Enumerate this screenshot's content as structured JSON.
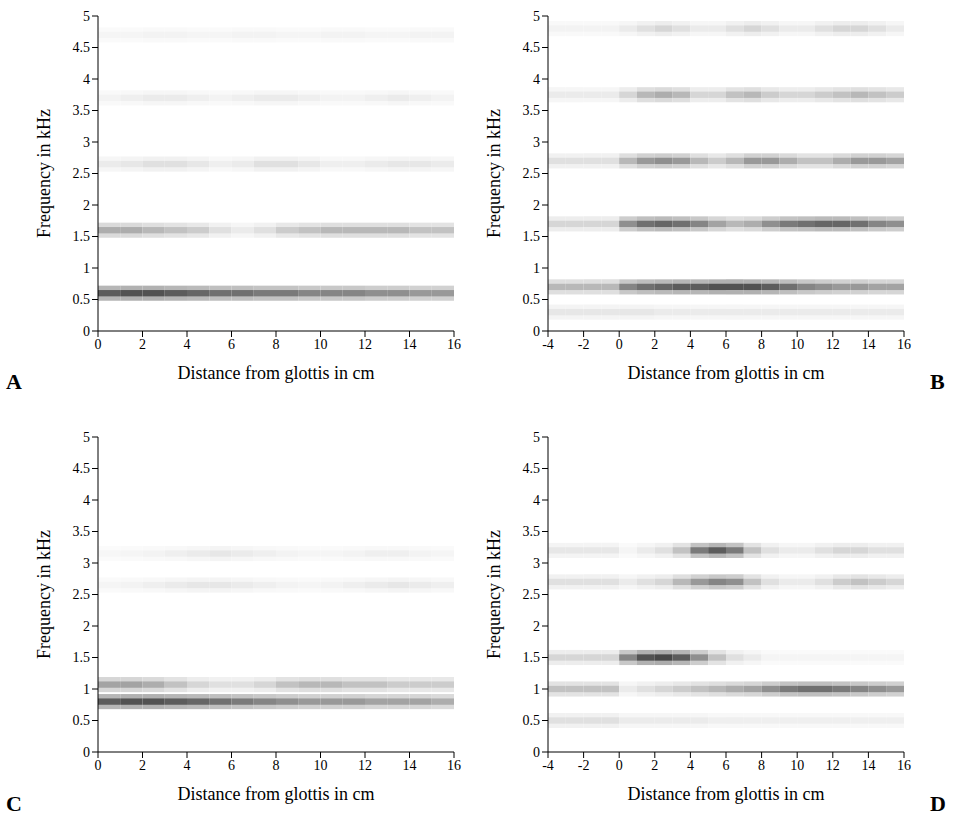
{
  "chart_data": [
    {
      "type": "heatmap",
      "label": "A",
      "xlabel": "Distance from glottis in cm",
      "ylabel": "Frequency in kHz",
      "xlim": [
        0,
        16
      ],
      "xticks": [
        0,
        2,
        4,
        6,
        8,
        10,
        12,
        14,
        16
      ],
      "ylim": [
        0,
        5
      ],
      "yticks": [
        0,
        0.5,
        1,
        1.5,
        2,
        2.5,
        3,
        3.5,
        4,
        4.5,
        5
      ],
      "zlim": [
        0,
        1
      ],
      "xbins": [
        0,
        1,
        2,
        3,
        4,
        5,
        6,
        7,
        8,
        9,
        10,
        11,
        12,
        13,
        14,
        15,
        16
      ],
      "bands": [
        {
          "freq": 0.6,
          "values": [
            0.8,
            0.85,
            0.85,
            0.8,
            0.75,
            0.7,
            0.7,
            0.65,
            0.65,
            0.6,
            0.6,
            0.6,
            0.55,
            0.55,
            0.5,
            0.5
          ]
        },
        {
          "freq": 1.6,
          "values": [
            0.4,
            0.4,
            0.35,
            0.3,
            0.25,
            0.15,
            0.1,
            0.15,
            0.25,
            0.3,
            0.35,
            0.35,
            0.35,
            0.35,
            0.3,
            0.3
          ]
        },
        {
          "freq": 2.65,
          "values": [
            0.1,
            0.12,
            0.15,
            0.15,
            0.12,
            0.08,
            0.1,
            0.15,
            0.15,
            0.12,
            0.08,
            0.08,
            0.1,
            0.12,
            0.12,
            0.1
          ]
        },
        {
          "freq": 3.7,
          "values": [
            0.06,
            0.08,
            0.1,
            0.1,
            0.08,
            0.06,
            0.08,
            0.1,
            0.1,
            0.08,
            0.06,
            0.06,
            0.08,
            0.1,
            0.08,
            0.06
          ]
        },
        {
          "freq": 4.7,
          "values": [
            0.05,
            0.05,
            0.06,
            0.06,
            0.05,
            0.05,
            0.06,
            0.06,
            0.05,
            0.05,
            0.06,
            0.06,
            0.05,
            0.05,
            0.06,
            0.06
          ]
        }
      ]
    },
    {
      "type": "heatmap",
      "label": "B",
      "xlabel": "Distance from glottis in cm",
      "ylabel": "Frequency in kHz",
      "xlim": [
        -4,
        16
      ],
      "xticks": [
        -4,
        -2,
        0,
        2,
        4,
        6,
        8,
        10,
        12,
        14,
        16
      ],
      "ylim": [
        0,
        5
      ],
      "yticks": [
        0,
        0.5,
        1,
        1.5,
        2,
        2.5,
        3,
        3.5,
        4,
        4.5,
        5
      ],
      "zlim": [
        0,
        1
      ],
      "xbins": [
        -4,
        -3,
        -2,
        -1,
        0,
        1,
        2,
        3,
        4,
        5,
        6,
        7,
        8,
        9,
        10,
        11,
        12,
        13,
        14,
        15,
        16
      ],
      "bands": [
        {
          "freq": 0.3,
          "values": [
            0.12,
            0.12,
            0.12,
            0.12,
            0.12,
            0.12,
            0.1,
            0.1,
            0.1,
            0.1,
            0.1,
            0.1,
            0.1,
            0.1,
            0.1,
            0.1,
            0.1,
            0.1,
            0.1,
            0.1
          ]
        },
        {
          "freq": 0.7,
          "values": [
            0.35,
            0.35,
            0.35,
            0.35,
            0.6,
            0.7,
            0.75,
            0.8,
            0.8,
            0.85,
            0.85,
            0.85,
            0.8,
            0.7,
            0.6,
            0.55,
            0.5,
            0.5,
            0.45,
            0.45
          ]
        },
        {
          "freq": 1.7,
          "values": [
            0.2,
            0.2,
            0.2,
            0.2,
            0.55,
            0.7,
            0.75,
            0.7,
            0.6,
            0.45,
            0.35,
            0.4,
            0.55,
            0.65,
            0.7,
            0.75,
            0.75,
            0.7,
            0.6,
            0.55
          ]
        },
        {
          "freq": 2.7,
          "values": [
            0.15,
            0.15,
            0.15,
            0.15,
            0.35,
            0.5,
            0.55,
            0.5,
            0.35,
            0.25,
            0.35,
            0.5,
            0.5,
            0.4,
            0.3,
            0.3,
            0.4,
            0.5,
            0.5,
            0.45
          ]
        },
        {
          "freq": 3.75,
          "values": [
            0.1,
            0.1,
            0.1,
            0.1,
            0.2,
            0.35,
            0.4,
            0.35,
            0.2,
            0.2,
            0.3,
            0.35,
            0.25,
            0.2,
            0.2,
            0.25,
            0.3,
            0.35,
            0.3,
            0.25
          ]
        },
        {
          "freq": 4.8,
          "values": [
            0.06,
            0.06,
            0.06,
            0.06,
            0.1,
            0.15,
            0.2,
            0.15,
            0.1,
            0.1,
            0.15,
            0.2,
            0.15,
            0.1,
            0.1,
            0.15,
            0.2,
            0.2,
            0.15,
            0.1
          ]
        }
      ]
    },
    {
      "type": "heatmap",
      "label": "C",
      "xlabel": "Distance from glottis in cm",
      "ylabel": "Frequency in kHz",
      "xlim": [
        0,
        16
      ],
      "xticks": [
        0,
        2,
        4,
        6,
        8,
        10,
        12,
        14,
        16
      ],
      "ylim": [
        0,
        5
      ],
      "yticks": [
        0,
        0.5,
        1,
        1.5,
        2,
        2.5,
        3,
        3.5,
        4,
        4.5,
        5
      ],
      "zlim": [
        0,
        1
      ],
      "xbins": [
        0,
        1,
        2,
        3,
        4,
        5,
        6,
        7,
        8,
        9,
        10,
        11,
        12,
        13,
        14,
        15,
        16
      ],
      "bands": [
        {
          "freq": 0.8,
          "values": [
            0.8,
            0.85,
            0.85,
            0.8,
            0.75,
            0.7,
            0.65,
            0.6,
            0.55,
            0.5,
            0.5,
            0.5,
            0.45,
            0.45,
            0.45,
            0.4
          ]
        },
        {
          "freq": 1.07,
          "values": [
            0.45,
            0.45,
            0.4,
            0.3,
            0.2,
            0.15,
            0.15,
            0.2,
            0.3,
            0.35,
            0.35,
            0.3,
            0.3,
            0.25,
            0.25,
            0.25
          ]
        },
        {
          "freq": 2.65,
          "values": [
            0.05,
            0.06,
            0.08,
            0.1,
            0.12,
            0.12,
            0.1,
            0.08,
            0.06,
            0.05,
            0.06,
            0.08,
            0.1,
            0.12,
            0.1,
            0.08
          ]
        },
        {
          "freq": 3.15,
          "values": [
            0.04,
            0.05,
            0.06,
            0.08,
            0.1,
            0.12,
            0.1,
            0.08,
            0.06,
            0.05,
            0.05,
            0.06,
            0.08,
            0.08,
            0.06,
            0.05
          ]
        }
      ]
    },
    {
      "type": "heatmap",
      "label": "D",
      "xlabel": "Distance from glottis in cm",
      "ylabel": "Frequency in kHz",
      "xlim": [
        -4,
        16
      ],
      "xticks": [
        -4,
        -2,
        0,
        2,
        4,
        6,
        8,
        10,
        12,
        14,
        16
      ],
      "ylim": [
        0,
        5
      ],
      "yticks": [
        0,
        0.5,
        1,
        1.5,
        2,
        2.5,
        3,
        3.5,
        4,
        4.5,
        5
      ],
      "zlim": [
        0,
        1
      ],
      "xbins": [
        -4,
        -3,
        -2,
        -1,
        0,
        1,
        2,
        3,
        4,
        5,
        6,
        7,
        8,
        9,
        10,
        11,
        12,
        13,
        14,
        15,
        16
      ],
      "bands": [
        {
          "freq": 0.5,
          "values": [
            0.15,
            0.15,
            0.15,
            0.15,
            0.1,
            0.1,
            0.1,
            0.1,
            0.1,
            0.08,
            0.08,
            0.08,
            0.08,
            0.08,
            0.08,
            0.08,
            0.08,
            0.08,
            0.08,
            0.08
          ]
        },
        {
          "freq": 1.0,
          "values": [
            0.3,
            0.3,
            0.3,
            0.3,
            0.1,
            0.15,
            0.2,
            0.25,
            0.3,
            0.35,
            0.4,
            0.45,
            0.55,
            0.65,
            0.7,
            0.7,
            0.65,
            0.6,
            0.55,
            0.5
          ]
        },
        {
          "freq": 1.5,
          "values": [
            0.2,
            0.2,
            0.2,
            0.2,
            0.6,
            0.85,
            0.9,
            0.8,
            0.55,
            0.3,
            0.15,
            0.1,
            0.05,
            0.05,
            0.05,
            0.05,
            0.05,
            0.05,
            0.05,
            0.05
          ]
        },
        {
          "freq": 2.7,
          "values": [
            0.15,
            0.15,
            0.15,
            0.15,
            0.1,
            0.15,
            0.2,
            0.35,
            0.5,
            0.6,
            0.55,
            0.3,
            0.15,
            0.1,
            0.1,
            0.15,
            0.25,
            0.3,
            0.25,
            0.2
          ]
        },
        {
          "freq": 3.2,
          "values": [
            0.12,
            0.12,
            0.12,
            0.12,
            0.05,
            0.1,
            0.15,
            0.3,
            0.65,
            0.8,
            0.65,
            0.3,
            0.15,
            0.1,
            0.1,
            0.15,
            0.2,
            0.2,
            0.15,
            0.15
          ]
        }
      ]
    }
  ]
}
